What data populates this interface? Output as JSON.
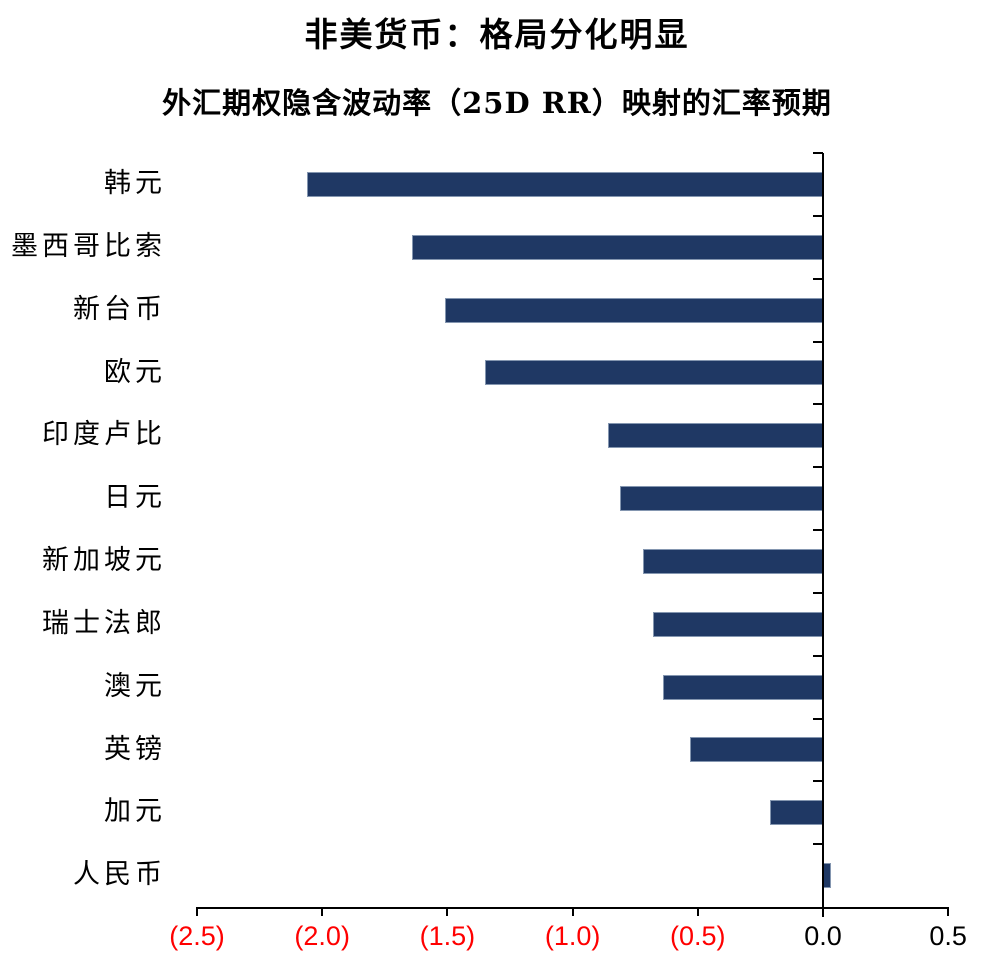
{
  "header": {
    "title": "非美货币：格局分化明显",
    "subtitle": "外汇期权隐含波动率（25D RR）映射的汇率预期"
  },
  "chart_data": {
    "type": "bar",
    "orientation": "horizontal",
    "title": "非美货币：格局分化明显",
    "subtitle": "外汇期权隐含波动率（25D RR）映射的汇率预期",
    "categories": [
      "韩元",
      "墨西哥比索",
      "新台币",
      "欧元",
      "印度卢比",
      "日元",
      "新加坡元",
      "瑞士法郎",
      "澳元",
      "英镑",
      "加元",
      "人民币"
    ],
    "values": [
      -2.06,
      -1.64,
      -1.51,
      -1.35,
      -0.86,
      -0.81,
      -0.72,
      -0.68,
      -0.64,
      -0.53,
      -0.21,
      0.03
    ],
    "xlabel": "",
    "ylabel": "",
    "xlim": [
      -2.5,
      0.5
    ],
    "grid": false,
    "legend_position": "none",
    "x_ticks": [
      {
        "label": "(2.5)",
        "value": -2.5,
        "color": "#ff0000"
      },
      {
        "label": "(2.0)",
        "value": -2.0,
        "color": "#ff0000"
      },
      {
        "label": "(1.5)",
        "value": -1.5,
        "color": "#ff0000"
      },
      {
        "label": "(1.0)",
        "value": -1.0,
        "color": "#ff0000"
      },
      {
        "label": "(0.5)",
        "value": -0.5,
        "color": "#ff0000"
      },
      {
        "label": "0.0",
        "value": 0.0,
        "color": "#000000"
      },
      {
        "label": "0.5",
        "value": 0.5,
        "color": "#000000"
      }
    ],
    "colors": {
      "bar_fill": "#1f3864",
      "bar_border": "#8496b0",
      "axis": "#000000",
      "negative_tick_label": "#ff0000",
      "positive_tick_label": "#000000",
      "title_color": "#000000"
    }
  }
}
